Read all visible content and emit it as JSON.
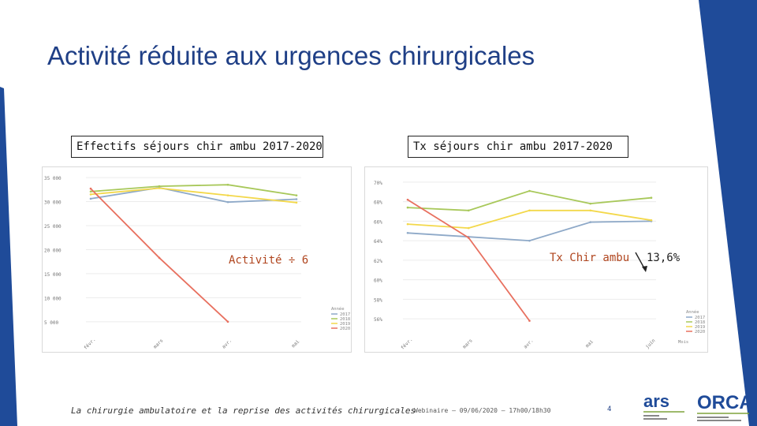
{
  "title": "Activité réduite aux urgences chirurgicales",
  "colors": {
    "accent": "#1f4b99",
    "title": "#1f3f86",
    "series": [
      "#8ea9c8",
      "#a8c85a",
      "#f3d84a",
      "#e8705f"
    ]
  },
  "charts": [
    {
      "title": "Effectifs séjours chir ambu 2017-2020",
      "overlay_label": "Activité ÷ 6"
    },
    {
      "title": "Tx séjours chir ambu 2017-2020",
      "overlay_label": "Tx Chir ambu",
      "overlay_value": "13,6%"
    }
  ],
  "chart_data": [
    {
      "type": "line",
      "title": "Effectifs séjours chir ambu 2017-2020",
      "categories": [
        "févr.",
        "mars",
        "avr.",
        "mai"
      ],
      "yticks": [
        "35 000",
        "30 000",
        "25 000",
        "20 000",
        "15 000",
        "10 000",
        "5 000"
      ],
      "ylim": [
        3000,
        36000
      ],
      "legend_title": "Année",
      "series": [
        {
          "name": "2017",
          "values": [
            30600,
            32900,
            29900,
            30500
          ]
        },
        {
          "name": "2018",
          "values": [
            32100,
            33200,
            33500,
            31300
          ]
        },
        {
          "name": "2019",
          "values": [
            31500,
            32800,
            31300,
            29800
          ]
        },
        {
          "name": "2020",
          "values": [
            32700,
            18300,
            5000,
            null
          ]
        }
      ]
    },
    {
      "type": "line",
      "title": "Tx séjours chir ambu 2017-2020",
      "categories": [
        "févr.",
        "mars",
        "avr.",
        "mai",
        "juin"
      ],
      "yticks": [
        "70%",
        "68%",
        "66%",
        "64%",
        "62%",
        "60%",
        "58%",
        "56%"
      ],
      "ylim": [
        54.8,
        70.8
      ],
      "legend_title": "Année",
      "xlabel": "Mois",
      "series": [
        {
          "name": "2017",
          "values": [
            64.8,
            64.4,
            64.0,
            65.9,
            66.0
          ]
        },
        {
          "name": "2018",
          "values": [
            67.4,
            67.1,
            69.1,
            67.8,
            68.4
          ]
        },
        {
          "name": "2019",
          "values": [
            65.7,
            65.3,
            67.1,
            67.1,
            66.1
          ]
        },
        {
          "name": "2020",
          "values": [
            68.2,
            64.3,
            55.8,
            null,
            null
          ]
        }
      ]
    }
  ],
  "footer": {
    "left": "La chirurgie ambulatoire et la reprise des activités chirurgicales",
    "center": "Webinaire – 09/06/2020 – 17h00/18h30",
    "page": "4"
  },
  "logos": {
    "ars": "ars",
    "orca": "ORCA"
  }
}
